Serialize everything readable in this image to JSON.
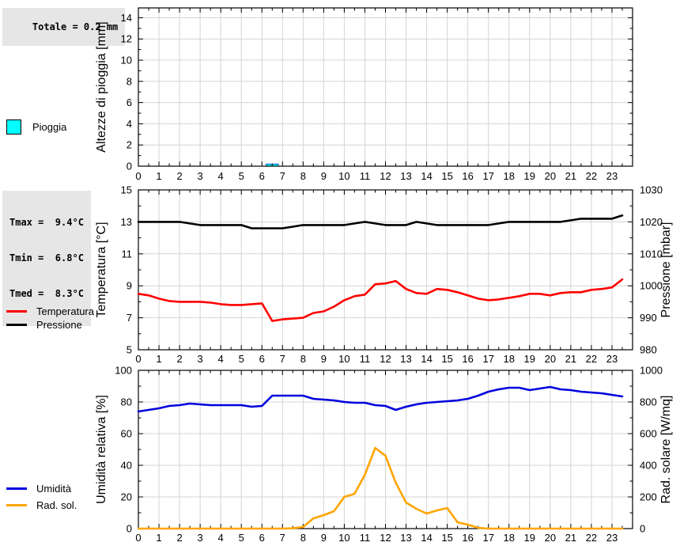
{
  "rain_panel": {
    "total_label": "Totale = 0.2 mm",
    "legend": [
      {
        "label": "Pioggia",
        "color": "#00ffff"
      }
    ]
  },
  "temp_panel": {
    "stats": {
      "tmax": "Tmax =  9.4°C",
      "tmin": "Tmin =  6.8°C",
      "tmed": "Tmed =  8.3°C"
    },
    "legend": [
      {
        "label": "Temperatura",
        "color": "#ff0000"
      },
      {
        "label": "Pressione",
        "color": "#000000"
      }
    ]
  },
  "humidity_panel": {
    "legend": [
      {
        "label": "Umidità",
        "color": "#0000dd"
      },
      {
        "label": "Rad. sol.",
        "color": "#ffa500"
      }
    ]
  },
  "colors": {
    "grid": "#d4d4d4",
    "frame": "#000000",
    "rain_bar": "#00ffff",
    "rain_bar_border": "#0055cc",
    "stat_box_bg": "#e6e6e6"
  },
  "chart_data": [
    {
      "type": "bar",
      "title": "",
      "total_mm": 0.2,
      "left_axis": {
        "label": "Altezze di pioggia [mm]",
        "lim": [
          0,
          14
        ],
        "ticks": [
          0,
          2,
          4,
          6,
          8,
          10,
          12,
          14
        ]
      },
      "x_ticks": [
        0,
        1,
        2,
        3,
        4,
        5,
        6,
        7,
        8,
        9,
        10,
        11,
        12,
        13,
        14,
        15,
        16,
        17,
        18,
        19,
        20,
        21,
        22,
        23
      ],
      "xlim": [
        0,
        24
      ],
      "bar_color": "#00ffff",
      "bars": [
        {
          "x_from": 6.2,
          "x_to": 6.8,
          "value_mm": 0.2
        }
      ]
    },
    {
      "type": "line",
      "title": "",
      "x_start": 0,
      "x_step": 0.5,
      "xlim": [
        0,
        24
      ],
      "x_ticks": [
        0,
        1,
        2,
        3,
        4,
        5,
        6,
        7,
        8,
        9,
        10,
        11,
        12,
        13,
        14,
        15,
        16,
        17,
        18,
        19,
        20,
        21,
        22,
        23
      ],
      "left_axis": {
        "label": "Temperatura [°C]",
        "lim": [
          5,
          15
        ],
        "ticks": [
          5,
          7,
          9,
          11,
          13,
          15
        ]
      },
      "right_axis": {
        "label": "Pressione [mbar]",
        "lim": [
          980,
          1030
        ],
        "ticks": [
          980,
          990,
          1000,
          1010,
          1020,
          1030
        ]
      },
      "series": [
        {
          "name": "Temperatura",
          "axis": "left",
          "color": "#ff0000",
          "values": [
            8.5,
            8.4,
            8.2,
            8.05,
            8.0,
            8.0,
            8.0,
            7.95,
            7.85,
            7.8,
            7.8,
            7.85,
            7.9,
            6.8,
            6.9,
            6.95,
            7.0,
            7.3,
            7.4,
            7.7,
            8.1,
            8.35,
            8.45,
            9.1,
            9.15,
            9.3,
            8.8,
            8.55,
            8.5,
            8.8,
            8.75,
            8.6,
            8.4,
            8.2,
            8.1,
            8.15,
            8.25,
            8.35,
            8.5,
            8.5,
            8.4,
            8.55,
            8.6,
            8.6,
            8.75,
            8.8,
            8.9,
            9.4
          ]
        },
        {
          "name": "Pressione",
          "axis": "right",
          "color": "#000000",
          "values": [
            1020,
            1020,
            1020,
            1020,
            1020,
            1019.5,
            1019,
            1019,
            1019,
            1019,
            1019,
            1018,
            1018,
            1018,
            1018,
            1018.5,
            1019,
            1019,
            1019,
            1019,
            1019,
            1019.5,
            1020,
            1019.5,
            1019,
            1019,
            1019,
            1020,
            1019.5,
            1019,
            1019,
            1019,
            1019,
            1019,
            1019,
            1019.5,
            1020,
            1020,
            1020,
            1020,
            1020,
            1020,
            1020.5,
            1021,
            1021,
            1021,
            1021,
            1022
          ]
        }
      ]
    },
    {
      "type": "line",
      "title": "",
      "x_start": 0,
      "x_step": 0.5,
      "xlim": [
        0,
        24
      ],
      "x_ticks": [
        0,
        1,
        2,
        3,
        4,
        5,
        6,
        7,
        8,
        9,
        10,
        11,
        12,
        13,
        14,
        15,
        16,
        17,
        18,
        19,
        20,
        21,
        22,
        23
      ],
      "left_axis": {
        "label": "Umidità relativa [%]",
        "lim": [
          0,
          100
        ],
        "ticks": [
          0,
          20,
          40,
          60,
          80,
          100
        ]
      },
      "right_axis": {
        "label": "Rad. solare [W/mq]",
        "lim": [
          0,
          1000
        ],
        "ticks": [
          0,
          200,
          400,
          600,
          800,
          1000
        ]
      },
      "series": [
        {
          "name": "Umidità",
          "axis": "left",
          "color": "#0000dd",
          "values": [
            74,
            75,
            76,
            77.5,
            78,
            79,
            78.5,
            78,
            78,
            78,
            78,
            77,
            77.5,
            84,
            84,
            84,
            84,
            82,
            81.5,
            81,
            80,
            79.5,
            79.5,
            78,
            77.5,
            75,
            77,
            78.5,
            79.5,
            80,
            80.5,
            81,
            82,
            84,
            86.5,
            88,
            89,
            89,
            87.5,
            88.5,
            89.5,
            88,
            87.5,
            86.5,
            86,
            85.5,
            84.5,
            83.5
          ]
        },
        {
          "name": "Rad. sol.",
          "axis": "right",
          "color": "#ffa500",
          "values": [
            0,
            0,
            0,
            0,
            0,
            0,
            0,
            0,
            0,
            0,
            0,
            0,
            0,
            0,
            0,
            2,
            10,
            65,
            85,
            110,
            200,
            220,
            340,
            510,
            460,
            290,
            165,
            125,
            95,
            115,
            130,
            40,
            25,
            5,
            0,
            0,
            0,
            0,
            0,
            0,
            0,
            0,
            0,
            0,
            0,
            0,
            0,
            0
          ]
        }
      ]
    }
  ]
}
